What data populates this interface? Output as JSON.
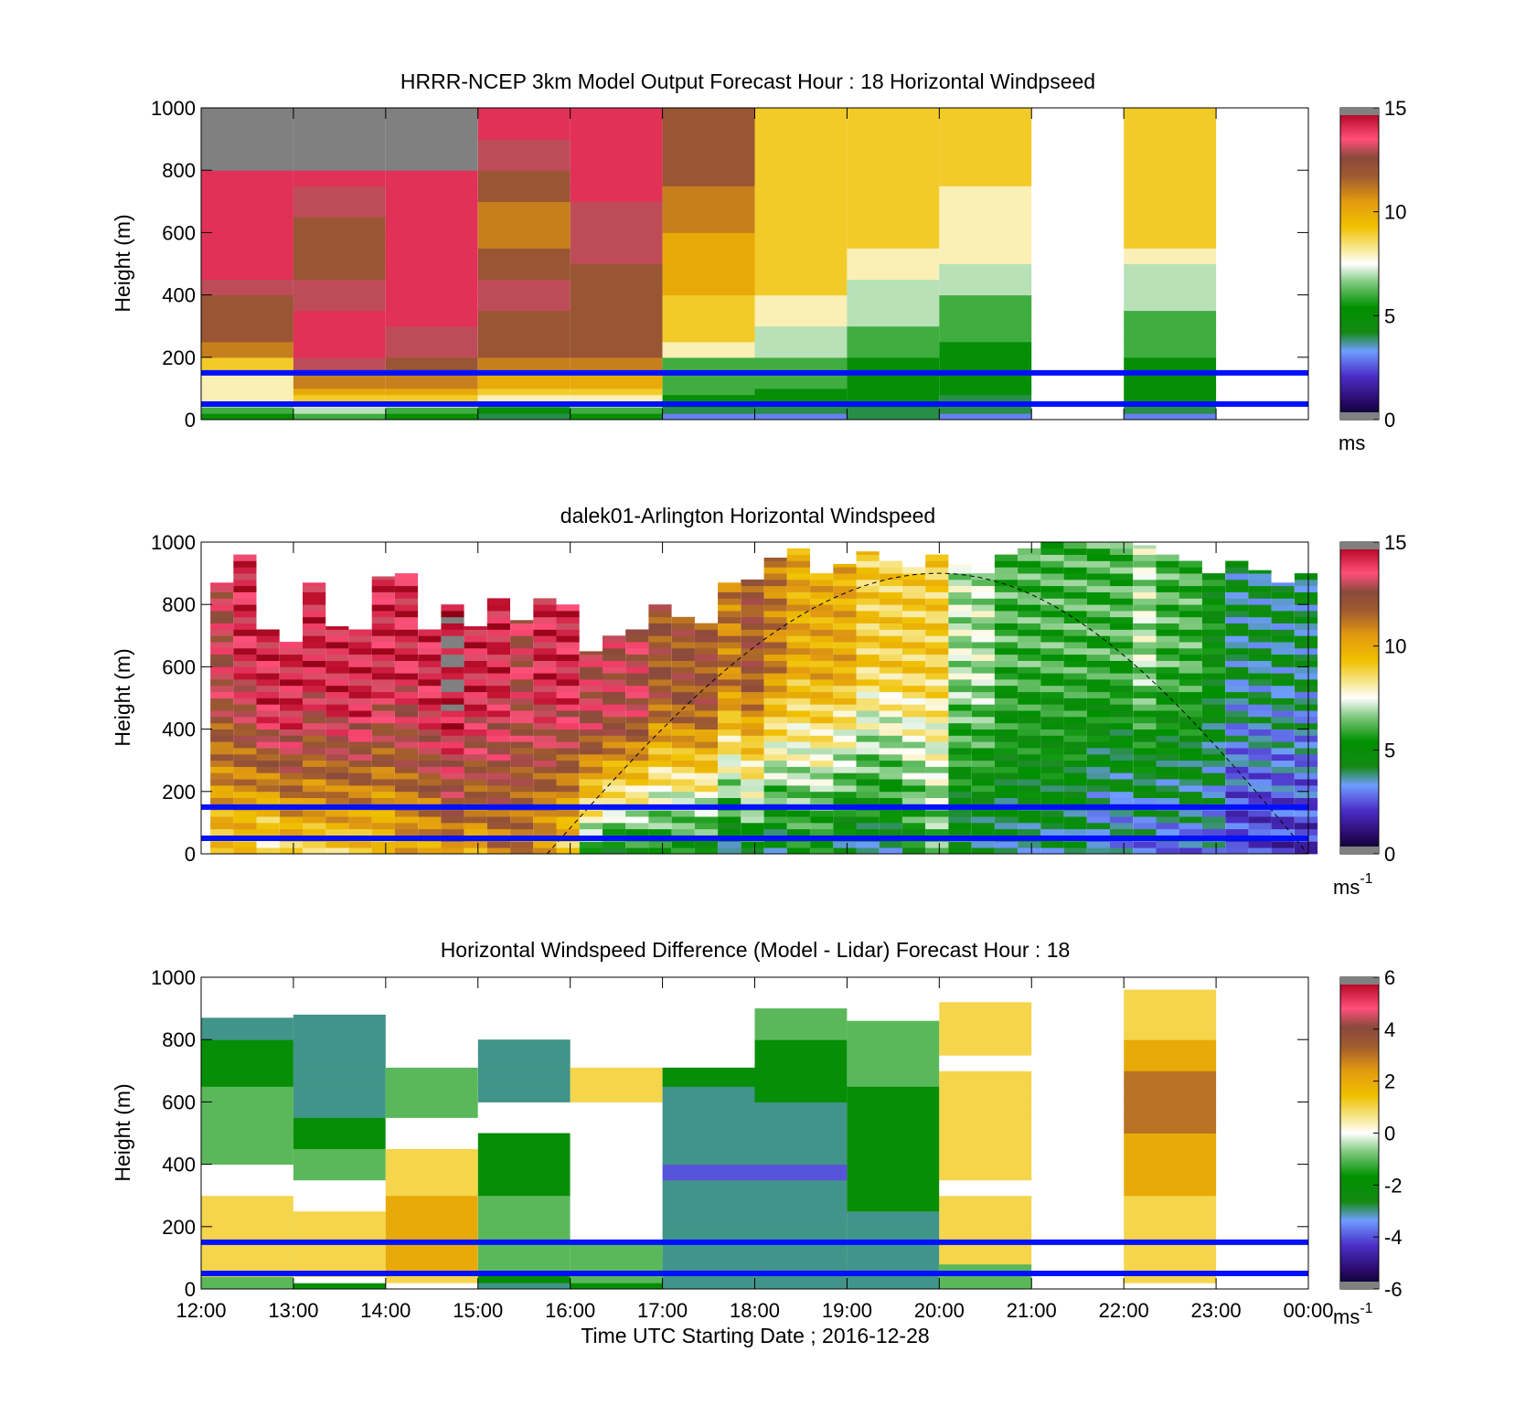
{
  "figure": {
    "xaxis": {
      "ticks": [
        "12:00",
        "13:00",
        "14:00",
        "15:00",
        "16:00",
        "17:00",
        "18:00",
        "19:00",
        "20:00",
        "21:00",
        "22:00",
        "23:00",
        "00:00"
      ],
      "label": "Time UTC  Starting Date ; 2016-12-28"
    }
  },
  "chart_data": [
    {
      "type": "heatmap",
      "title": "HRRR-NCEP 3km Model Output   Forecast Hour : 18 Horizontal Windpseed",
      "ylabel": "Height (m)",
      "ylim": [
        0,
        1000
      ],
      "yticks": [
        "0",
        "200",
        "400",
        "600",
        "800",
        "1000"
      ],
      "colorbar": {
        "ticks": [
          "0",
          "5",
          "10",
          "15"
        ],
        "range": [
          0,
          15
        ],
        "unit": "ms",
        "unit_sup": ""
      },
      "x_hours": [
        12,
        13,
        14,
        15,
        16,
        17,
        18,
        19,
        20,
        21,
        22,
        23
      ],
      "height_bins": [
        0,
        20,
        40,
        60,
        80,
        100,
        150,
        200,
        250,
        300,
        350,
        400,
        450,
        500,
        550,
        600,
        650,
        700,
        750,
        800,
        900,
        1000
      ],
      "values": [
        [
          5,
          6,
          7,
          8,
          8,
          8,
          9,
          11,
          12,
          12,
          12,
          13,
          14,
          14,
          14,
          14,
          14,
          14,
          14,
          15,
          16
        ],
        [
          6,
          7,
          8,
          9,
          10,
          11,
          13,
          14,
          14,
          14,
          13,
          13,
          12,
          12,
          12,
          12,
          13,
          13,
          14,
          15,
          16
        ],
        [
          5,
          6,
          8,
          9,
          10,
          11,
          12,
          13,
          13,
          14,
          14,
          14,
          14,
          14,
          14,
          14,
          14,
          14,
          14,
          15,
          15
        ],
        [
          4,
          5,
          6,
          8,
          9,
          10,
          11,
          12,
          12,
          12,
          13,
          13,
          12,
          12,
          11,
          11,
          11,
          12,
          12,
          13,
          14
        ],
        [
          5,
          6,
          7,
          8,
          9,
          10,
          11,
          12,
          12,
          12,
          12,
          12,
          12,
          13,
          13,
          13,
          13,
          14,
          14,
          14,
          14
        ],
        [
          3,
          4,
          5,
          5,
          6,
          6,
          6,
          8,
          9,
          9,
          9,
          10,
          10,
          10,
          10,
          11,
          11,
          11,
          12,
          12,
          12
        ],
        [
          3,
          4,
          4,
          5,
          5,
          6,
          6,
          7,
          7,
          8,
          8,
          9,
          9,
          9,
          9,
          9,
          9,
          9,
          9,
          9,
          9
        ],
        [
          4,
          4,
          5,
          5,
          5,
          5,
          5,
          6,
          6,
          7,
          7,
          7,
          8,
          8,
          9,
          9,
          9,
          9,
          9,
          9,
          9
        ],
        [
          3,
          4,
          4,
          4,
          5,
          5,
          5,
          5,
          6,
          6,
          6,
          7,
          7,
          8,
          8,
          8,
          8,
          8,
          9,
          9,
          9
        ],
        [
          null,
          null,
          null,
          null,
          null,
          null,
          null,
          null,
          null,
          null,
          null,
          null,
          null,
          null,
          null,
          null,
          null,
          null,
          null,
          null,
          null
        ],
        [
          3,
          4,
          4,
          5,
          5,
          5,
          5,
          6,
          6,
          6,
          7,
          7,
          7,
          8,
          9,
          9,
          9,
          9,
          9,
          9,
          9
        ],
        [
          null,
          null,
          null,
          null,
          null,
          null,
          null,
          null,
          null,
          null,
          null,
          null,
          null,
          null,
          null,
          null,
          null,
          null,
          null,
          null,
          null
        ]
      ],
      "overlay_lines_m": [
        150,
        50
      ]
    },
    {
      "type": "heatmap",
      "title": "dalek01-Arlington  Horizontal Windspeed",
      "ylabel": "Height (m)",
      "ylim": [
        0,
        1000
      ],
      "yticks": [
        "0",
        "200",
        "400",
        "600",
        "800",
        "1000"
      ],
      "colorbar": {
        "ticks": [
          "0",
          "5",
          "10",
          "15"
        ],
        "range": [
          0,
          15
        ],
        "unit": "ms",
        "unit_sup": "-1"
      },
      "profile_hours": [
        12.1,
        12.35,
        12.6,
        12.85,
        13.1,
        13.35,
        13.6,
        13.85,
        14.1,
        14.35,
        14.6,
        14.85,
        15.1,
        15.35,
        15.6,
        15.85,
        16.1,
        16.35,
        16.6,
        16.85,
        17.1,
        17.35,
        17.6,
        17.85,
        18.1,
        18.35,
        18.6,
        18.85,
        19.1,
        19.35,
        19.6,
        19.85,
        20.1,
        20.35,
        20.6,
        20.85,
        21.1,
        21.35,
        21.6,
        21.85,
        22.1,
        22.35,
        22.6,
        22.85,
        23.1,
        23.35,
        23.6,
        23.85
      ],
      "profile_top_m": [
        870,
        960,
        720,
        680,
        870,
        730,
        720,
        890,
        900,
        720,
        800,
        730,
        820,
        750,
        820,
        800,
        650,
        700,
        720,
        800,
        760,
        740,
        870,
        880,
        950,
        980,
        900,
        930,
        970,
        940,
        920,
        960,
        930,
        900,
        960,
        980,
        1000,
        1000,
        1000,
        1000,
        990,
        960,
        940,
        900,
        940,
        910,
        870,
        900
      ],
      "surface_speed": [
        9,
        9,
        8,
        9,
        9,
        9,
        9,
        9,
        10,
        10,
        11,
        10,
        11,
        11,
        10,
        9,
        6,
        5,
        5,
        5,
        5,
        5,
        4,
        5,
        4,
        5,
        5,
        4,
        4,
        4,
        5,
        6,
        4,
        4,
        4,
        4,
        4,
        4,
        3,
        3,
        3,
        3,
        3,
        3,
        2,
        2,
        2,
        2
      ],
      "upper_speed": [
        13,
        14,
        14,
        14,
        14,
        14,
        14,
        14,
        14,
        14,
        15,
        14,
        14,
        13,
        14,
        14,
        13,
        13,
        13,
        12,
        12,
        12,
        11,
        12,
        11,
        10,
        10,
        10,
        9,
        9,
        9,
        9,
        7,
        7,
        6,
        6,
        6,
        6,
        6,
        6,
        7,
        6,
        6,
        5,
        4,
        4,
        4,
        4
      ],
      "overlay_lines_m": [
        150,
        50
      ],
      "dashed_curve": {
        "start_hour": 15.75,
        "peak_hour": 20.0,
        "end_hour": 24.0,
        "peak_m": 900
      }
    },
    {
      "type": "heatmap",
      "title": "Horizontal Windspeed Difference (Model - Lidar) Forecast Hour : 18",
      "ylabel": "Height (m)",
      "ylim": [
        0,
        1000
      ],
      "yticks": [
        "0",
        "200",
        "400",
        "600",
        "800",
        "1000"
      ],
      "colorbar": {
        "ticks": [
          "-6",
          "-4",
          "-2",
          "0",
          "2",
          "4",
          "6"
        ],
        "range": [
          -6,
          6
        ],
        "unit": "ms",
        "unit_sup": "-1"
      },
      "x_hours": [
        12,
        13,
        14,
        15,
        16,
        17,
        18,
        19,
        20,
        21,
        22,
        23
      ],
      "column_top_m": [
        870,
        880,
        710,
        800,
        710,
        710,
        910,
        860,
        920,
        null,
        960,
        null
      ],
      "column_mean_diff": [
        [
          0,
          20,
          40,
          60,
          80,
          100,
          150,
          200,
          250,
          300,
          350,
          400,
          450,
          500,
          550,
          600,
          650,
          700,
          750,
          800,
          900
        ],
        [
          -1,
          -1,
          1,
          1,
          1,
          1,
          1,
          1,
          1,
          0,
          0,
          -1,
          -1,
          -1,
          -1,
          -1,
          -2,
          -2,
          -2,
          -3,
          -4
        ],
        [
          -2,
          0,
          1,
          1,
          1,
          1,
          1,
          1,
          0,
          0,
          -1,
          -1,
          -2,
          -2,
          -3,
          -3,
          -3,
          -3,
          -3,
          -3,
          -3
        ],
        [
          0,
          1,
          1,
          2,
          2,
          2,
          2,
          2,
          2,
          1,
          1,
          1,
          0,
          0,
          -1,
          -1,
          -1,
          -1,
          null,
          null,
          null
        ],
        [
          -3,
          -2,
          -2,
          -1,
          -1,
          -1,
          -1,
          -1,
          -1,
          -2,
          -2,
          -2,
          -2,
          null,
          null,
          -3,
          -3,
          -3,
          -3,
          null,
          null
        ],
        [
          -2,
          -1,
          -1,
          -1,
          -1,
          -1,
          0,
          0,
          0,
          0,
          0,
          0,
          0,
          0,
          0,
          1,
          1,
          1,
          null,
          null,
          null
        ],
        [
          -3,
          -3,
          -3,
          -3,
          -3,
          -3,
          -3,
          -3,
          -3,
          -3,
          -4,
          -3,
          -3,
          -3,
          -3,
          -3,
          -2,
          -2,
          null,
          null,
          null
        ],
        [
          -3,
          -3,
          -3,
          -3,
          -3,
          -3,
          -3,
          -3,
          -3,
          -3,
          -4,
          -3,
          -3,
          -3,
          -3,
          -2,
          -2,
          -2,
          -2,
          -1,
          null
        ],
        [
          -3,
          -3,
          -3,
          -3,
          -3,
          -3,
          -3,
          -3,
          -2,
          -2,
          -2,
          -2,
          -2,
          -2,
          -2,
          -2,
          -1,
          -1,
          -1,
          -1,
          null
        ],
        [
          -1,
          -1,
          -1,
          -1,
          1,
          1,
          1,
          1,
          1,
          0,
          1,
          1,
          1,
          1,
          1,
          1,
          1,
          0,
          1,
          1,
          1
        ],
        [
          null,
          null,
          null,
          null,
          null,
          null,
          null,
          null,
          null,
          null,
          null,
          null,
          null,
          null,
          null,
          null,
          null,
          null,
          null,
          null,
          null
        ],
        [
          0,
          1,
          1,
          1,
          1,
          1,
          1,
          1,
          1,
          2,
          2,
          2,
          2,
          3,
          3,
          3,
          3,
          2,
          2,
          1,
          1
        ],
        [
          null,
          null,
          null,
          null,
          null,
          null,
          null,
          null,
          null,
          null,
          null,
          null,
          null,
          null,
          null,
          null,
          null,
          null,
          null,
          null,
          null
        ]
      ],
      "overlay_lines_m": [
        150,
        50
      ]
    }
  ]
}
